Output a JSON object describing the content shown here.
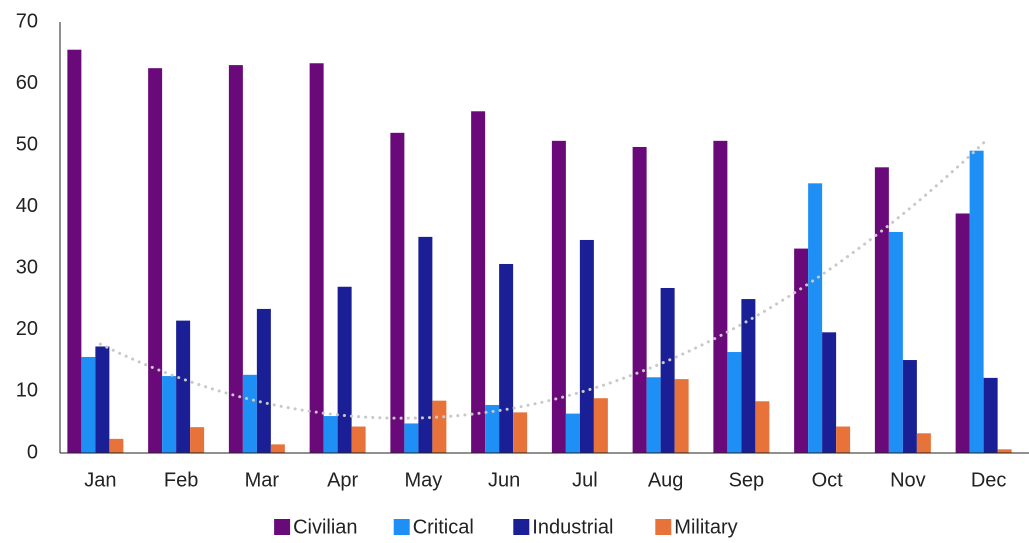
{
  "chart_data": {
    "type": "bar",
    "categories": [
      "Jan",
      "Feb",
      "Mar",
      "Apr",
      "May",
      "Jun",
      "Jul",
      "Aug",
      "Sep",
      "Oct",
      "Nov",
      "Dec"
    ],
    "series": [
      {
        "name": "Civilian",
        "color": "#6a0a7a",
        "values": [
          65.5,
          62.5,
          63,
          63.3,
          52,
          55.5,
          50.7,
          49.7,
          50.7,
          33.2,
          46.4,
          38.9
        ]
      },
      {
        "name": "Critical",
        "color": "#1e90f5",
        "values": [
          15.6,
          12.5,
          12.7,
          6,
          4.8,
          7.8,
          6.4,
          12.3,
          16.4,
          43.8,
          35.9,
          49.1
        ]
      },
      {
        "name": "Industrial",
        "color": "#1a1f96",
        "values": [
          17.3,
          21.5,
          23.4,
          27,
          35.1,
          30.7,
          34.6,
          26.8,
          25,
          19.6,
          15.1,
          12.2
        ]
      },
      {
        "name": "Military",
        "color": "#e8733a",
        "values": [
          2.3,
          4.2,
          1.4,
          4.3,
          8.5,
          6.6,
          8.9,
          12,
          8.4,
          4.3,
          3.2,
          0.6
        ]
      }
    ],
    "ylim": [
      0,
      70
    ],
    "yticks": [
      0,
      10,
      20,
      30,
      40,
      50,
      60,
      70
    ],
    "grid": false,
    "legend": "bottom",
    "trendline": {
      "series": 1,
      "order": 2,
      "color": "#c8c8c8"
    }
  }
}
